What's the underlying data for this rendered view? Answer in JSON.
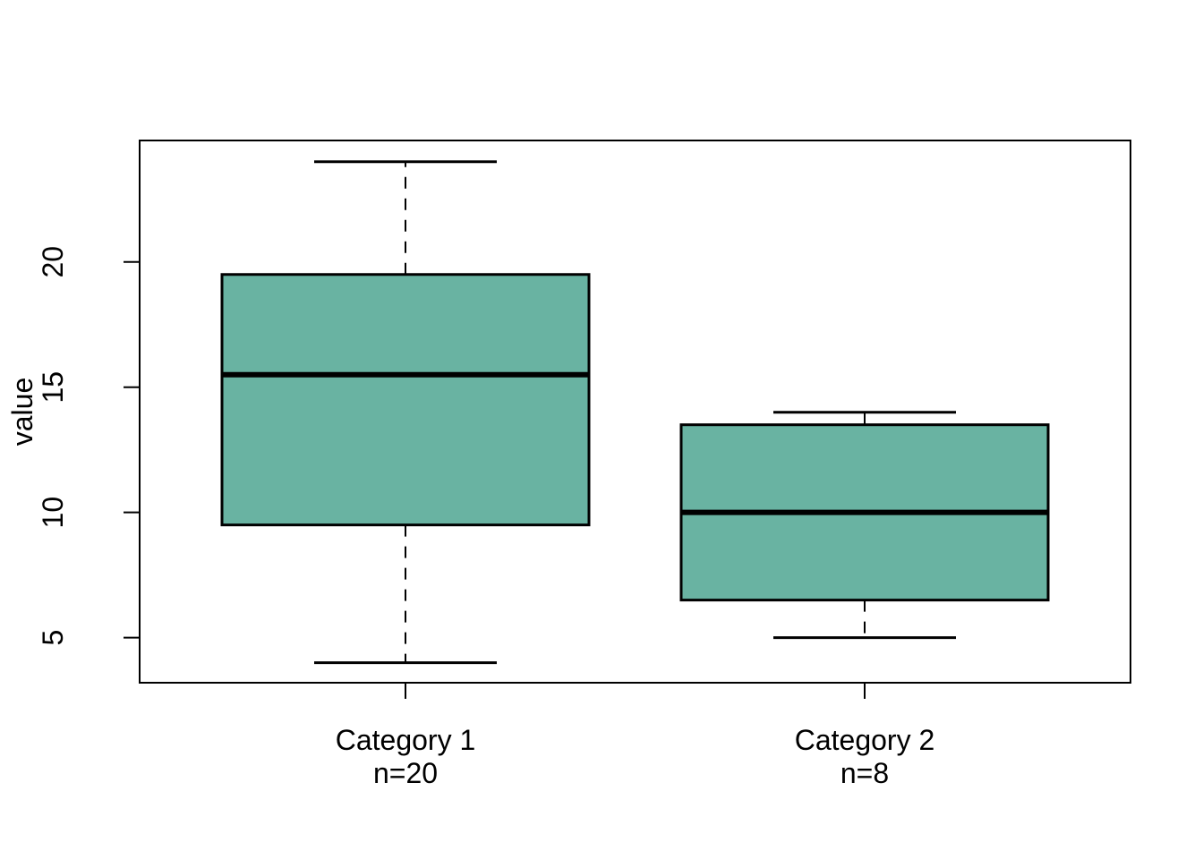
{
  "figure": {
    "background": "#ffffff"
  },
  "chart_data": {
    "type": "boxplot",
    "orientation": "vertical",
    "ylabel": "value",
    "xlabel": "",
    "y_ticks": [
      5,
      10,
      15,
      20
    ],
    "ylim": [
      3.2,
      24.85
    ],
    "grid": false,
    "legend": "none",
    "box_fill": "#69b3a2",
    "box_border": "#000000",
    "median_color": "#000000",
    "whisker_style": "dashed",
    "categories": [
      {
        "label": "Category 1",
        "sublabel": "n=20",
        "n": 20,
        "whisker_low": 4,
        "q1": 9.5,
        "median": 15.5,
        "q3": 19.5,
        "whisker_high": 24,
        "outliers": []
      },
      {
        "label": "Category 2",
        "sublabel": "n=8",
        "n": 8,
        "whisker_low": 5,
        "q1": 6.5,
        "median": 10,
        "q3": 13.5,
        "whisker_high": 14,
        "outliers": []
      }
    ]
  }
}
